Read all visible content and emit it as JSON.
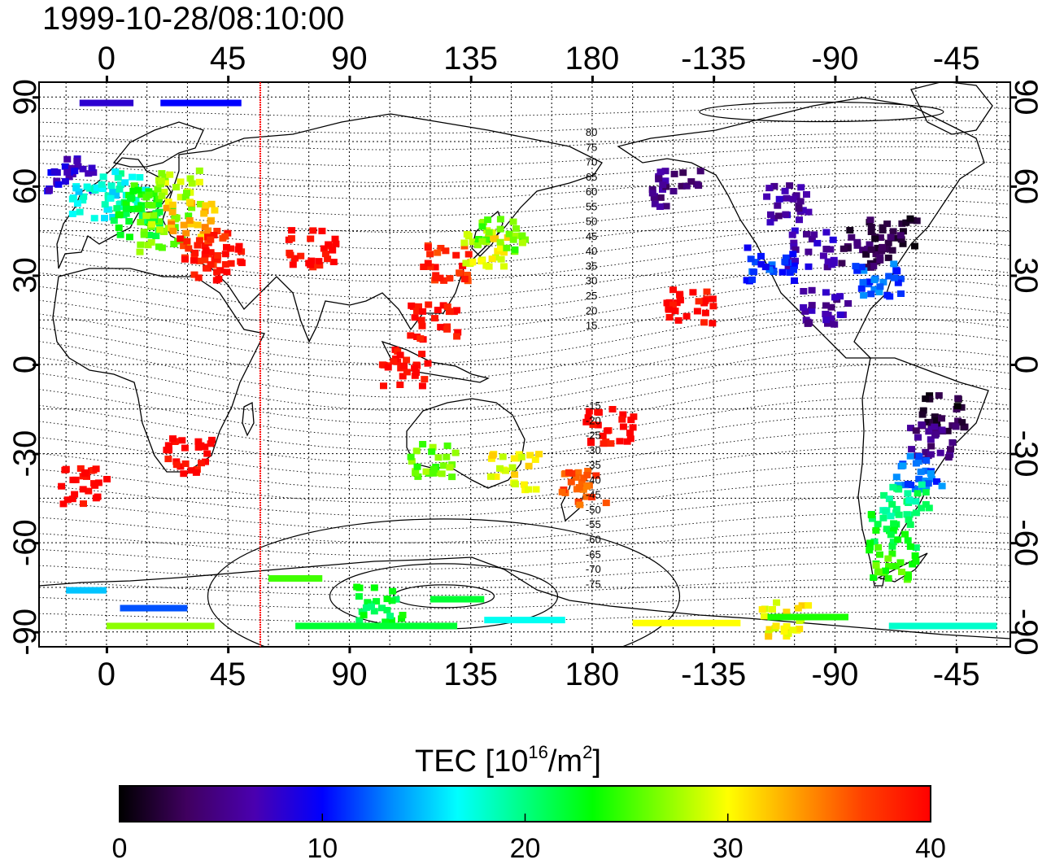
{
  "title": "1999-10-28/08:10:00",
  "axes": {
    "x_top_ticks": [
      "0",
      "45",
      "90",
      "135",
      "180",
      "-135",
      "-90",
      "-45"
    ],
    "x_bottom_ticks": [
      "0",
      "45",
      "90",
      "135",
      "180",
      "-135",
      "-90",
      "-45"
    ],
    "y_left_ticks": [
      "90",
      "60",
      "30",
      "0",
      "-30",
      "-60",
      "-90"
    ],
    "y_right_ticks": [
      "90",
      "60",
      "30",
      "0",
      "-30",
      "-60",
      "-90"
    ],
    "lon_ticks_values": [
      0,
      45,
      90,
      135,
      180,
      225,
      270,
      315
    ],
    "lat_ticks_values": [
      90,
      60,
      30,
      0,
      -30,
      -60,
      -90
    ],
    "lon_range": [
      -25,
      335
    ],
    "lat_range": [
      -95,
      95
    ]
  },
  "meridian_marker_lon": 57,
  "magnetic_lat_labels_north": [
    "80",
    "75",
    "70",
    "65",
    "60",
    "55",
    "50",
    "45",
    "40",
    "35",
    "30",
    "25",
    "20",
    "15"
  ],
  "magnetic_lat_labels_south": [
    "-15",
    "-20",
    "-25",
    "-30",
    "-35",
    "-40",
    "-45",
    "-50",
    "-55",
    "-60",
    "-65",
    "-70",
    "-75"
  ],
  "colorbar": {
    "label_main": "TEC  [10",
    "label_sup1": "16",
    "label_mid": "/m",
    "label_sup2": "2",
    "label_end": "]",
    "ticks": [
      "0",
      "10",
      "20",
      "30",
      "40"
    ],
    "tick_values": [
      0,
      10,
      20,
      30,
      40
    ],
    "range": [
      0,
      40
    ],
    "stops": [
      "#000000",
      "#400060",
      "#4a00b0",
      "#0000ff",
      "#0088ff",
      "#00ffff",
      "#00ff80",
      "#00ff00",
      "#80ff00",
      "#ffff00",
      "#ffa000",
      "#ff4000",
      "#ff0000"
    ]
  },
  "chart_data": {
    "type": "heatmap",
    "title": "1999-10-28/08:10:00",
    "xlabel": "",
    "ylabel": "",
    "value_label": "TEC  [10^16/m^2]",
    "xlim": [
      -25,
      335
    ],
    "ylim": [
      -95,
      95
    ],
    "vlim": [
      0,
      40
    ],
    "grid": true,
    "regions": [
      {
        "lon": -15,
        "lat": 65,
        "value": 8
      },
      {
        "lon": -5,
        "lat": 55,
        "value": 17
      },
      {
        "lon": 5,
        "lat": 60,
        "value": 18
      },
      {
        "lon": 10,
        "lat": 50,
        "value": 22
      },
      {
        "lon": 15,
        "lat": 55,
        "value": 24
      },
      {
        "lon": 20,
        "lat": 45,
        "value": 27
      },
      {
        "lon": 25,
        "lat": 60,
        "value": 28
      },
      {
        "lon": 30,
        "lat": 50,
        "value": 33
      },
      {
        "lon": 35,
        "lat": 40,
        "value": 38
      },
      {
        "lon": 40,
        "lat": 35,
        "value": 40
      },
      {
        "lon": 75,
        "lat": 40,
        "value": 40
      },
      {
        "lon": 125,
        "lat": 35,
        "value": 38
      },
      {
        "lon": 140,
        "lat": 40,
        "value": 30
      },
      {
        "lon": 145,
        "lat": 45,
        "value": 26
      },
      {
        "lon": 120,
        "lat": 15,
        "value": 40
      },
      {
        "lon": 110,
        "lat": 0,
        "value": 40
      },
      {
        "lon": 175,
        "lat": -40,
        "value": 36
      },
      {
        "lon": 150,
        "lat": -35,
        "value": 30
      },
      {
        "lon": 120,
        "lat": -32,
        "value": 26
      },
      {
        "lon": 185,
        "lat": -20,
        "value": 40
      },
      {
        "lon": 30,
        "lat": -30,
        "value": 40
      },
      {
        "lon": -10,
        "lat": -40,
        "value": 40
      },
      {
        "lon": 210,
        "lat": 60,
        "value": 5
      },
      {
        "lon": 250,
        "lat": 55,
        "value": 6
      },
      {
        "lon": 260,
        "lat": 40,
        "value": 7
      },
      {
        "lon": 280,
        "lat": 40,
        "value": 3
      },
      {
        "lon": 290,
        "lat": 45,
        "value": 2
      },
      {
        "lon": 245,
        "lat": 35,
        "value": 11
      },
      {
        "lon": 285,
        "lat": 30,
        "value": 12
      },
      {
        "lon": 265,
        "lat": 20,
        "value": 6
      },
      {
        "lon": 215,
        "lat": 20,
        "value": 40
      },
      {
        "lon": 310,
        "lat": -15,
        "value": 2
      },
      {
        "lon": 305,
        "lat": -25,
        "value": 5
      },
      {
        "lon": 300,
        "lat": -35,
        "value": 12
      },
      {
        "lon": 295,
        "lat": -45,
        "value": 20
      },
      {
        "lon": 290,
        "lat": -55,
        "value": 22
      },
      {
        "lon": 290,
        "lat": -65,
        "value": 25
      },
      {
        "lon": 100,
        "lat": -80,
        "value": 22
      },
      {
        "lon": 250,
        "lat": -85,
        "value": 30
      }
    ]
  }
}
